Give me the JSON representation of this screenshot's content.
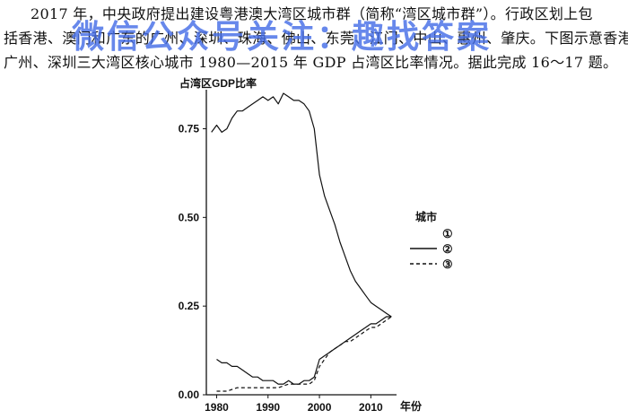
{
  "question": {
    "line1": "2017 年，中央政府提出建设粤港澳大湾区城市群（简称“湾区城市群”）。行政区划上包",
    "line2": "括香港、澳门和广东的广州、深圳、珠海、佛山、东莞、江门、中山、惠州、肇庆。下图示意香港、",
    "line3": "广州、深圳三大湾区核心城市 1980—2015 年 GDP 占湾区比率情况。据此完成 16～17 题。"
  },
  "watermark": "微信公众号关注：趣找答案",
  "chart_data": {
    "type": "line",
    "ylabel": "占湾区GDP比率",
    "xlabel": "年份",
    "xlim": [
      1978,
      2015
    ],
    "ylim": [
      0,
      0.86
    ],
    "xticks": [
      1980,
      1990,
      2000,
      2010
    ],
    "yticks": [
      0.0,
      0.25,
      0.5,
      0.75
    ],
    "ytick_labels": [
      "0.00",
      "0.25",
      "0.50",
      "0.75"
    ],
    "legend": {
      "title": "城市",
      "placement": "right"
    },
    "series": [
      {
        "name": "①",
        "style": "solid",
        "color": "#111111",
        "x": [
          1979,
          1980,
          1981,
          1982,
          1983,
          1984,
          1985,
          1986,
          1987,
          1988,
          1989,
          1990,
          1991,
          1992,
          1993,
          1994,
          1995,
          1996,
          1997,
          1998,
          1999,
          2000,
          2001,
          2002,
          2003,
          2004,
          2005,
          2006,
          2007,
          2008,
          2009,
          2010,
          2011,
          2012,
          2013,
          2014
        ],
        "y": [
          0.74,
          0.76,
          0.74,
          0.75,
          0.78,
          0.8,
          0.8,
          0.81,
          0.82,
          0.83,
          0.84,
          0.83,
          0.84,
          0.82,
          0.85,
          0.84,
          0.83,
          0.83,
          0.82,
          0.8,
          0.75,
          0.62,
          0.56,
          0.52,
          0.48,
          0.43,
          0.39,
          0.35,
          0.32,
          0.3,
          0.28,
          0.26,
          0.25,
          0.24,
          0.23,
          0.22
        ]
      },
      {
        "name": "②",
        "style": "solid",
        "color": "#111111",
        "x": [
          1980,
          1981,
          1982,
          1983,
          1984,
          1985,
          1986,
          1987,
          1988,
          1989,
          1990,
          1991,
          1992,
          1993,
          1994,
          1995,
          1996,
          1997,
          1998,
          1999,
          2000,
          2001,
          2002,
          2003,
          2004,
          2005,
          2006,
          2007,
          2008,
          2009,
          2010,
          2011,
          2012,
          2013,
          2014
        ],
        "y": [
          0.1,
          0.09,
          0.09,
          0.08,
          0.08,
          0.07,
          0.06,
          0.05,
          0.05,
          0.04,
          0.04,
          0.04,
          0.03,
          0.03,
          0.04,
          0.03,
          0.03,
          0.04,
          0.04,
          0.05,
          0.1,
          0.11,
          0.12,
          0.13,
          0.14,
          0.15,
          0.16,
          0.17,
          0.18,
          0.19,
          0.2,
          0.2,
          0.21,
          0.22,
          0.22
        ]
      },
      {
        "name": "③",
        "style": "dashed",
        "color": "#111111",
        "x": [
          1980,
          1982,
          1984,
          1986,
          1988,
          1990,
          1992,
          1994,
          1996,
          1998,
          1999,
          2000,
          2001,
          2002,
          2003,
          2004,
          2005,
          2006,
          2007,
          2008,
          2009,
          2010,
          2011,
          2012,
          2013,
          2014
        ],
        "y": [
          0.01,
          0.01,
          0.02,
          0.02,
          0.02,
          0.02,
          0.02,
          0.03,
          0.03,
          0.03,
          0.04,
          0.08,
          0.1,
          0.12,
          0.13,
          0.14,
          0.15,
          0.15,
          0.16,
          0.17,
          0.18,
          0.19,
          0.19,
          0.2,
          0.21,
          0.22
        ]
      }
    ]
  }
}
